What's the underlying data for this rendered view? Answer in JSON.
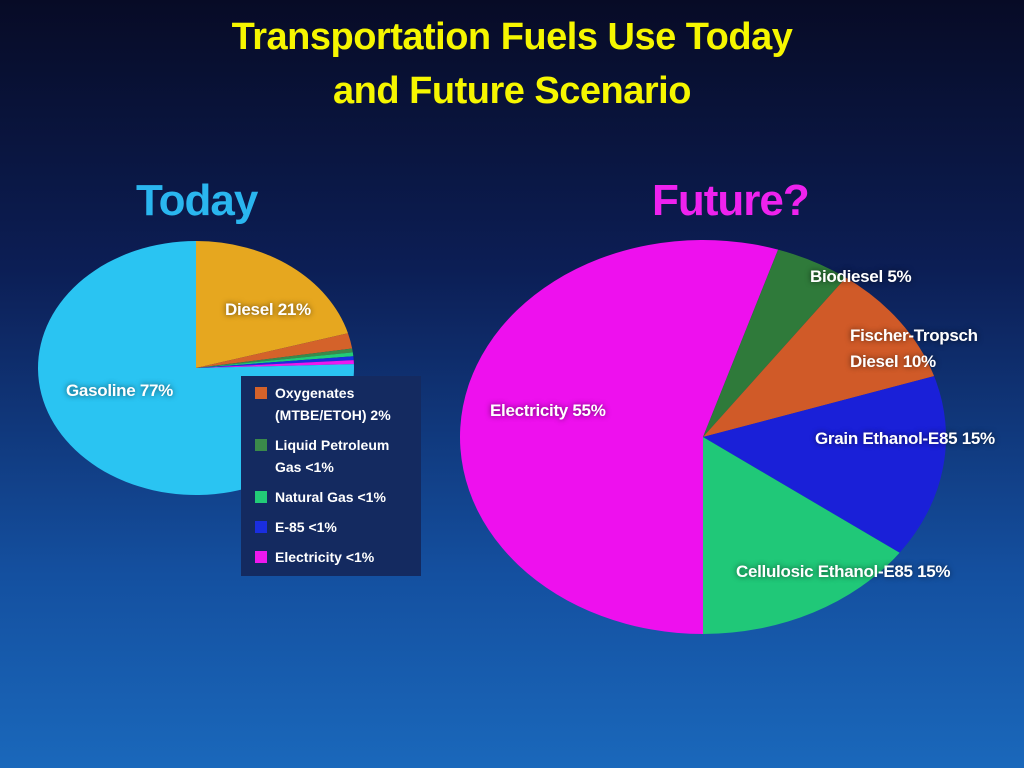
{
  "title_lines": [
    "Transportation Fuels Use Today",
    "and Future Scenario"
  ],
  "chart_data": [
    {
      "type": "pie",
      "title": "Today",
      "categories": [
        "Gasoline",
        "Diesel",
        "Oxygenates (MTBE/ETOH)",
        "Liquid Petroleum Gas",
        "Natural Gas",
        "E-85",
        "Electricity"
      ],
      "values": [
        77,
        21,
        2,
        0.5,
        0.5,
        0.5,
        0.5
      ],
      "value_labels": [
        "77%",
        "21%",
        "2%",
        "<1%",
        "<1%",
        "<1%",
        "<1%"
      ],
      "colors": [
        "#2ac4f2",
        "#e6a71f",
        "#d4622a",
        "#3a8a4a",
        "#22cc77",
        "#1a2ee0",
        "#ee18ee"
      ]
    },
    {
      "type": "pie",
      "title": "Future?",
      "categories": [
        "Electricity",
        "Biodiesel",
        "Fischer-Tropsch Diesel",
        "Grain Ethanol-E85",
        "Cellulosic Ethanol-E85"
      ],
      "values": [
        55,
        5,
        10,
        15,
        15
      ],
      "value_labels": [
        "55%",
        "5%",
        "10%",
        "15%",
        "15%"
      ],
      "colors": [
        "#ee10ee",
        "#2f7a3a",
        "#d05a28",
        "#1a20d8",
        "#20c878"
      ]
    }
  ]
}
